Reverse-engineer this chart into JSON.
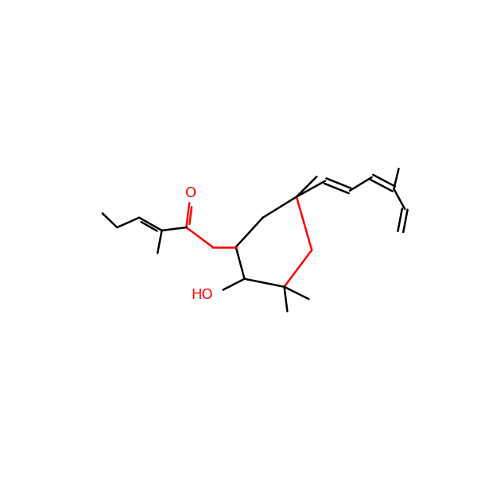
{
  "background_color": "#ffffff",
  "bond_color": "#000000",
  "oxygen_color": "#ff0000",
  "line_width": 1.8,
  "font_size": 13
}
